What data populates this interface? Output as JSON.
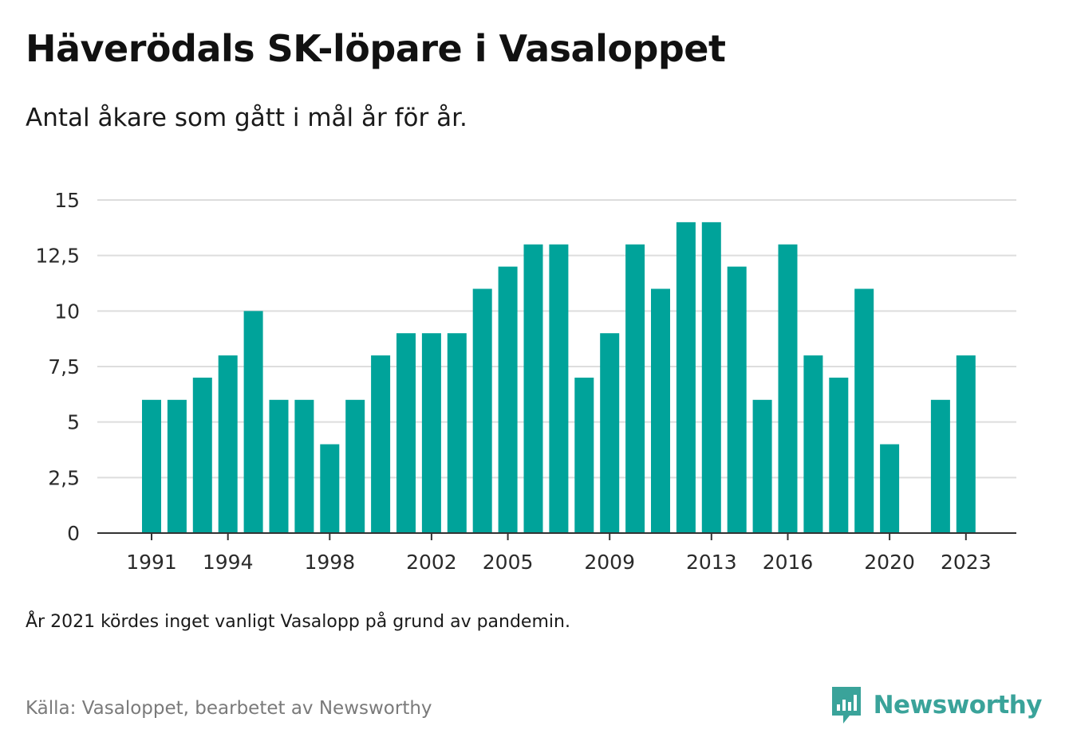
{
  "title": "Häverödals SK-löpare i Vasaloppet",
  "subtitle": "Antal åkare som gått i mål år för år.",
  "note": "År 2021 kördes inget vanligt Vasalopp på grund av pandemin.",
  "source": "Källa: Vasaloppet, bearbetet av Newsworthy",
  "brand": {
    "name": "Newsworthy",
    "icon": "newsworthy-logo-icon",
    "color": "#3aa39a"
  },
  "colors": {
    "bar": "#00a39a",
    "grid": "#dddddd",
    "axis": "#333333"
  },
  "chart_data": {
    "type": "bar",
    "categories": [
      "1991",
      "1992",
      "1993",
      "1994",
      "1995",
      "1996",
      "1997",
      "1998",
      "1999",
      "2000",
      "2001",
      "2002",
      "2003",
      "2004",
      "2005",
      "2006",
      "2007",
      "2008",
      "2009",
      "2010",
      "2011",
      "2012",
      "2013",
      "2014",
      "2015",
      "2016",
      "2017",
      "2018",
      "2019",
      "2020",
      "2021",
      "2022",
      "2023"
    ],
    "values": [
      6,
      6,
      7,
      8,
      10,
      6,
      6,
      4,
      6,
      8,
      9,
      9,
      9,
      11,
      12,
      13,
      13,
      7,
      9,
      13,
      11,
      14,
      14,
      12,
      6,
      13,
      8,
      7,
      11,
      4,
      null,
      6,
      8
    ],
    "xticks": [
      "1991",
      "1994",
      "1998",
      "2002",
      "2005",
      "2009",
      "2013",
      "2016",
      "2020",
      "2023"
    ],
    "yticks": [
      0,
      2.5,
      5,
      7.5,
      10,
      12.5,
      15
    ],
    "ytick_labels": [
      "0",
      "2,5",
      "5",
      "7,5",
      "10",
      "12,5",
      "15"
    ],
    "ylim": [
      0,
      15
    ],
    "grid": true
  }
}
